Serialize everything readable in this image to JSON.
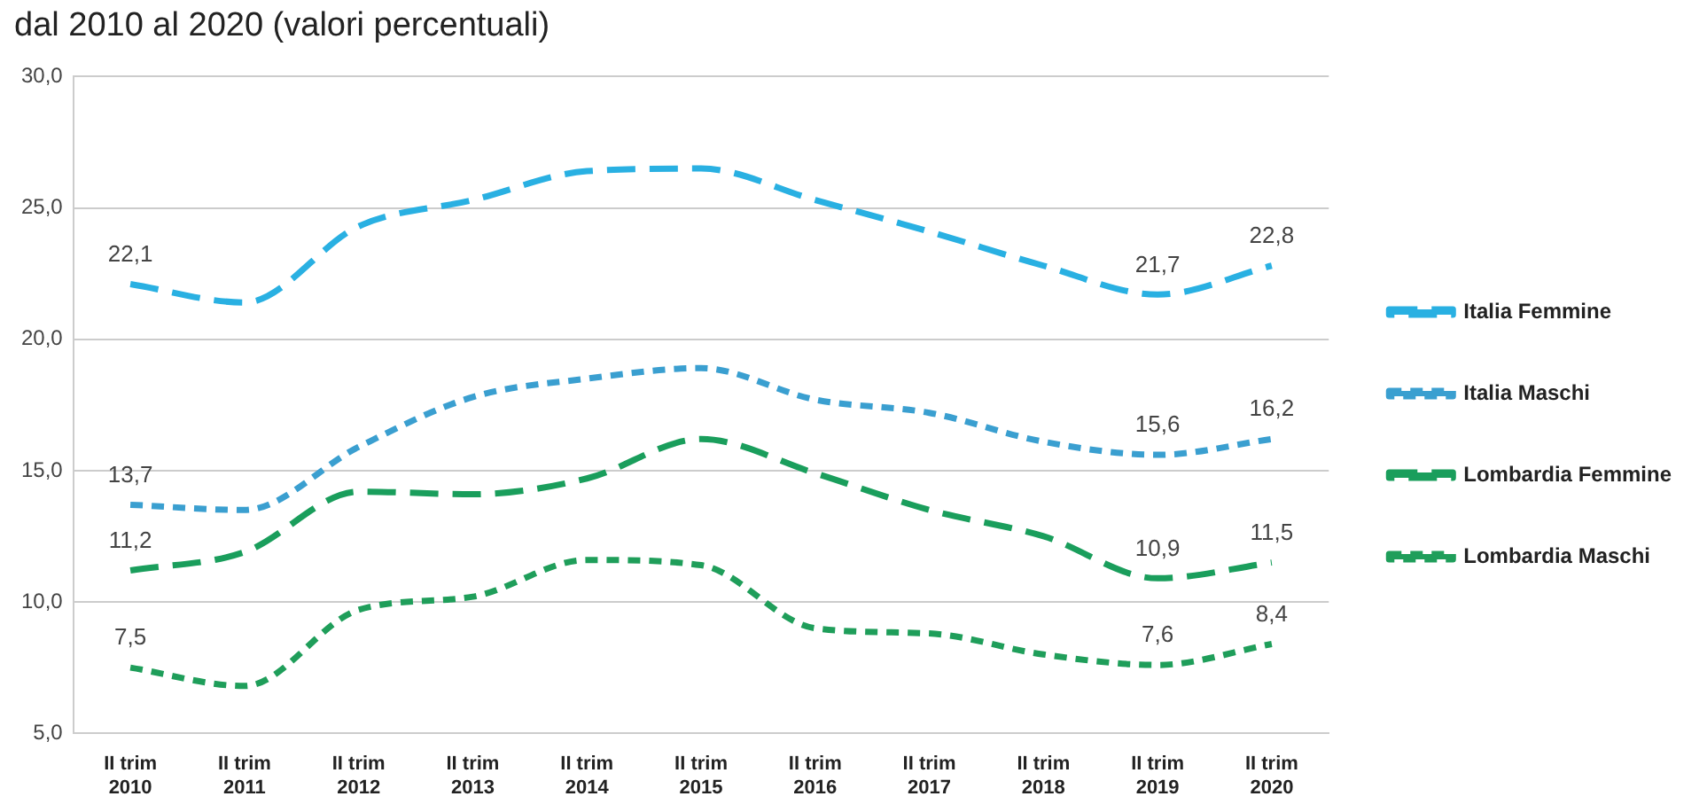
{
  "chart_data": {
    "type": "line",
    "title": "dal 2010 al 2020 (valori percentuali)",
    "categories": [
      "II trim 2010",
      "II trim 2011",
      "II trim 2012",
      "II trim 2013",
      "II trim 2014",
      "II trim 2015",
      "II trim 2016",
      "II trim 2017",
      "II trim 2018",
      "II trim 2019",
      "II trim 2020"
    ],
    "series": [
      {
        "name": "Italia Femmine",
        "color": "#29b0e2",
        "line_style": "dashed",
        "values": [
          22.1,
          21.4,
          24.3,
          25.3,
          26.4,
          26.5,
          25.3,
          24.1,
          22.8,
          21.7,
          22.8
        ],
        "value_labels": [
          "22,1",
          null,
          null,
          null,
          null,
          null,
          null,
          null,
          null,
          "21,7",
          "22,8"
        ]
      },
      {
        "name": "Italia Maschi",
        "color": "#3a9fd0",
        "line_style": "dotted",
        "values": [
          13.7,
          13.5,
          15.9,
          17.8,
          18.5,
          18.9,
          17.7,
          17.2,
          16.1,
          15.6,
          16.2
        ],
        "value_labels": [
          "13,7",
          null,
          null,
          null,
          null,
          null,
          null,
          null,
          null,
          "15,6",
          "16,2"
        ]
      },
      {
        "name": "Lombardia Femmine",
        "color": "#1a9e5c",
        "line_style": "dashed",
        "values": [
          11.2,
          11.9,
          14.2,
          14.1,
          14.7,
          16.2,
          14.9,
          13.5,
          12.5,
          10.9,
          11.5
        ],
        "value_labels": [
          "11,2",
          null,
          null,
          null,
          null,
          null,
          null,
          null,
          null,
          "10,9",
          "11,5"
        ]
      },
      {
        "name": "Lombardia Maschi",
        "color": "#1f9e5a",
        "line_style": "dotted",
        "values": [
          7.5,
          6.8,
          9.7,
          10.2,
          11.6,
          11.4,
          9.0,
          8.8,
          8.0,
          7.6,
          8.4
        ],
        "value_labels": [
          "7,5",
          null,
          null,
          null,
          null,
          null,
          null,
          null,
          null,
          "7,6",
          "8,4"
        ]
      }
    ],
    "ylim": [
      5,
      30
    ],
    "yticks": [
      {
        "value": 5,
        "label": "5,0"
      },
      {
        "value": 10,
        "label": "10,0"
      },
      {
        "value": 15,
        "label": "15,0"
      },
      {
        "value": 20,
        "label": "20,0"
      },
      {
        "value": 25,
        "label": "25,0"
      },
      {
        "value": 30,
        "label": "30,0"
      }
    ],
    "grid": "y",
    "legend": "right",
    "marker": "none"
  }
}
